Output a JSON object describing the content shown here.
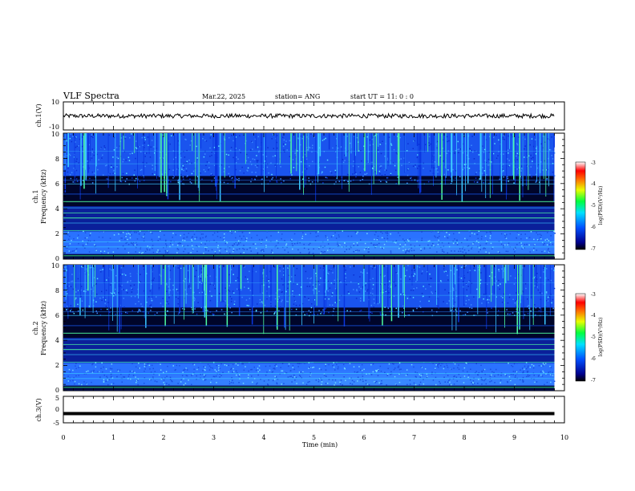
{
  "header": {
    "title": "VLF Spectra",
    "date": "Mar.22, 2025",
    "station": "station= ANG",
    "start": "start  UT  =   11: 0  : 0"
  },
  "colors": {
    "spectrogram_low": "#000020",
    "spectrogram_mid": "#0a3cff",
    "spectrogram_high": "#50ffa0",
    "trace": "#000000"
  },
  "chart_data": [
    {
      "type": "line",
      "panel": "ch1-waveform",
      "ylabel": "ch.1(V)",
      "ylim": [
        -10,
        10
      ],
      "yticks": [
        "10",
        "-10"
      ],
      "x_range": [
        0,
        10
      ],
      "series": [
        {
          "values_mean": 0,
          "approx_amplitude": 1.5
        }
      ]
    },
    {
      "type": "heatmap",
      "panel": "ch1-spectrogram",
      "ylabel": "ch.1\nFrequency (kHz)",
      "ylabel_line1": "ch.1",
      "ylabel_line2": "Frequency (kHz)",
      "ylim": [
        0,
        10
      ],
      "yticks": [
        "0",
        "2",
        "4",
        "6",
        "8",
        "10"
      ],
      "x_range": [
        0,
        9.8
      ],
      "colorbar": {
        "label": "log(PSD)(V²/Hz)",
        "range": [
          -7,
          -3
        ],
        "ticks": [
          "-3",
          "-4",
          "-5",
          "-6",
          "-7"
        ]
      }
    },
    {
      "type": "heatmap",
      "panel": "ch2-spectrogram",
      "ylabel_line1": "ch.2",
      "ylabel_line2": "Frequency (kHz)",
      "ylim": [
        0,
        10
      ],
      "yticks": [
        "0",
        "2",
        "4",
        "6",
        "8",
        "10"
      ],
      "x_range": [
        0,
        9.8
      ],
      "colorbar": {
        "label": "log(PSD)(V²/Hz)",
        "range": [
          -7,
          -3
        ],
        "ticks": [
          "-3",
          "-4",
          "-5",
          "-6",
          "-7"
        ]
      }
    },
    {
      "type": "line",
      "panel": "ch3-waveform",
      "ylabel": "ch.3(V)",
      "ylim": [
        -5,
        5
      ],
      "yticks": [
        "5",
        "0",
        "-5"
      ],
      "x_range": [
        0,
        9.8
      ],
      "series": [
        {
          "constant": -1.5
        }
      ]
    }
  ],
  "xaxis": {
    "label": "Time (min)",
    "ticks": [
      "0",
      "1",
      "2",
      "3",
      "4",
      "5",
      "6",
      "7",
      "8",
      "9",
      "10"
    ],
    "range": [
      0,
      10
    ]
  }
}
